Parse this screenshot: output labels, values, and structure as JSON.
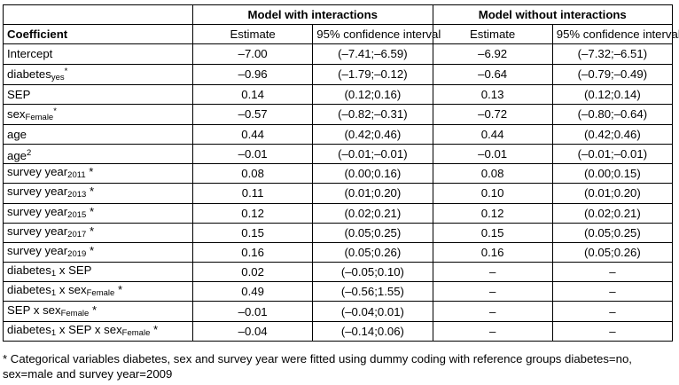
{
  "header": {
    "group_with": "Model with interactions",
    "group_without": "Model without interactions",
    "coef_label": "Coefficient",
    "estimate_label": "Estimate",
    "ci_label": "95% confidence interval"
  },
  "rows": [
    {
      "main": "Intercept",
      "sub": "",
      "sup": "",
      "tail": "",
      "est1": "–7.00",
      "ci1": "(–7.41;–6.59)",
      "est2": "–6.92",
      "ci2": "(–7.32;–6.51)"
    },
    {
      "main": "diabetes",
      "sub": "yes",
      "sup": "*",
      "tail": "",
      "est1": "–0.96",
      "ci1": "(–1.79;–0.12)",
      "est2": "–0.64",
      "ci2": "(–0.79;–0.49)"
    },
    {
      "main": "SEP",
      "sub": "",
      "sup": "",
      "tail": "",
      "est1": "0.14",
      "ci1": "(0.12;0.16)",
      "est2": "0.13",
      "ci2": "(0.12;0.14)"
    },
    {
      "main": "sex",
      "sub": "Female",
      "sup": "*",
      "tail": "",
      "est1": "–0.57",
      "ci1": "(–0.82;–0.31)",
      "est2": "–0.72",
      "ci2": "(–0.80;–0.64)"
    },
    {
      "main": "age",
      "sub": "",
      "sup": "",
      "tail": "",
      "est1": "0.44",
      "ci1": "(0.42;0.46)",
      "est2": "0.44",
      "ci2": "(0.42;0.46)"
    },
    {
      "main": "age",
      "sub": "",
      "sup": "2",
      "tail": "",
      "est1": "–0.01",
      "ci1": "(–0.01;–0.01)",
      "est2": "–0.01",
      "ci2": "(–0.01;–0.01)"
    },
    {
      "main": "survey year",
      "sub": "2011",
      "sup": "",
      "tail": " *",
      "est1": "0.08",
      "ci1": "(0.00;0.16)",
      "est2": "0.08",
      "ci2": "(0.00;0.15)"
    },
    {
      "main": "survey year",
      "sub": "2013",
      "sup": "",
      "tail": " *",
      "est1": "0.11",
      "ci1": "(0.01;0.20)",
      "est2": "0.10",
      "ci2": "(0.01;0.20)"
    },
    {
      "main": "survey year",
      "sub": "2015",
      "sup": "",
      "tail": " *",
      "est1": "0.12",
      "ci1": "(0.02;0.21)",
      "est2": "0.12",
      "ci2": "(0.02;0.21)"
    },
    {
      "main": "survey year",
      "sub": "2017",
      "sup": "",
      "tail": " *",
      "est1": "0.15",
      "ci1": "(0.05;0.25)",
      "est2": "0.15",
      "ci2": "(0.05;0.25)"
    },
    {
      "main": "survey year",
      "sub": "2019",
      "sup": "",
      "tail": " *",
      "est1": "0.16",
      "ci1": "(0.05;0.26)",
      "est2": "0.16",
      "ci2": "(0.05;0.26)"
    },
    {
      "main": "diabetes",
      "sub": "1",
      "sup": "",
      "tail": " x SEP",
      "est1": "0.02",
      "ci1": "(–0.05;0.10)",
      "est2": "–",
      "ci2": "–"
    },
    {
      "main": "diabetes",
      "sub": "1",
      "sup": "",
      "tail": " x sex",
      "sub2": "Female",
      "tail2": " *",
      "est1": "0.49",
      "ci1": "(–0.56;1.55)",
      "est2": "–",
      "ci2": "–"
    },
    {
      "main": "SEP x sex",
      "sub": "Female",
      "sup": "",
      "tail": " *",
      "est1": "–0.01",
      "ci1": "(–0.04;0.01)",
      "est2": "–",
      "ci2": "–"
    },
    {
      "main": "diabetes",
      "sub": "1",
      "sup": "",
      "tail": " x SEP x sex",
      "sub2": "Female",
      "tail2": " *",
      "est1": "–0.04",
      "ci1": "(–0.14;0.06)",
      "est2": "–",
      "ci2": "–"
    }
  ],
  "footnote": "* Categorical variables diabetes, sex and survey year were fitted using dummy coding with reference groups diabetes=no, sex=male and survey year=2009"
}
